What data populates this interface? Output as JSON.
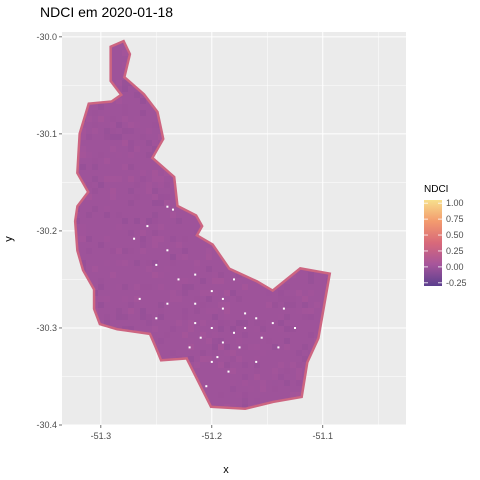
{
  "title": "NDCI em 2020-01-18",
  "chart_data": {
    "type": "heatmap",
    "title": "NDCI em 2020-01-18",
    "xlabel": "x",
    "ylabel": "y",
    "x_ticks": [
      "-51.3",
      "-51.2",
      "-51.1"
    ],
    "x_tick_values": [
      -51.3,
      -51.2,
      -51.1
    ],
    "y_ticks": [
      "-30.0",
      "-30.1",
      "-30.2",
      "-30.3",
      "-30.4"
    ],
    "y_tick_values": [
      -30.0,
      -30.1,
      -30.2,
      -30.3,
      -30.4
    ],
    "xlim": [
      -51.335,
      -51.025
    ],
    "ylim": [
      -30.4,
      -29.995
    ],
    "grid": true,
    "legend": {
      "title": "NDCI",
      "placement": "right",
      "labels": [
        "1.00",
        "0.75",
        "0.50",
        "0.25",
        "0.00",
        "-0.25"
      ],
      "values": [
        1.0,
        0.75,
        0.5,
        0.25,
        0.0,
        -0.25
      ],
      "range": [
        -0.3,
        1.05
      ],
      "colors": [
        "#5b3f8e",
        "#a6559b",
        "#d8697a",
        "#f39a6e",
        "#f7df8c"
      ]
    },
    "typical_value": 0.0,
    "edge_value": 0.3,
    "outline_lonlat": [
      [
        -51.29,
        -30.011
      ],
      [
        -51.28,
        -30.006
      ],
      [
        -51.275,
        -30.018
      ],
      [
        -51.28,
        -30.042
      ],
      [
        -51.262,
        -30.06
      ],
      [
        -51.25,
        -30.078
      ],
      [
        -51.245,
        -30.105
      ],
      [
        -51.255,
        -30.125
      ],
      [
        -51.235,
        -30.145
      ],
      [
        -51.232,
        -30.175
      ],
      [
        -51.215,
        -30.185
      ],
      [
        -51.21,
        -30.195
      ],
      [
        -51.215,
        -30.205
      ],
      [
        -51.2,
        -30.215
      ],
      [
        -51.185,
        -30.24
      ],
      [
        -51.16,
        -30.253
      ],
      [
        -51.145,
        -30.263
      ],
      [
        -51.12,
        -30.24
      ],
      [
        -51.095,
        -30.245
      ],
      [
        -51.105,
        -30.31
      ],
      [
        -51.115,
        -30.335
      ],
      [
        -51.12,
        -30.37
      ],
      [
        -51.145,
        -30.375
      ],
      [
        -51.17,
        -30.382
      ],
      [
        -51.2,
        -30.38
      ],
      [
        -51.222,
        -30.33
      ],
      [
        -51.245,
        -30.332
      ],
      [
        -51.25,
        -30.318
      ],
      [
        -51.255,
        -30.305
      ],
      [
        -51.285,
        -30.3
      ],
      [
        -51.3,
        -30.295
      ],
      [
        -51.305,
        -30.28
      ],
      [
        -51.305,
        -30.26
      ],
      [
        -51.315,
        -30.24
      ],
      [
        -51.32,
        -30.22
      ],
      [
        -51.322,
        -30.19
      ],
      [
        -51.32,
        -30.175
      ],
      [
        -51.31,
        -30.16
      ],
      [
        -51.32,
        -30.14
      ],
      [
        -51.318,
        -30.1
      ],
      [
        -51.31,
        -30.07
      ],
      [
        -51.29,
        -30.068
      ],
      [
        -51.28,
        -30.06
      ],
      [
        -51.29,
        -30.045
      ]
    ],
    "holes_lonlat": [
      [
        -51.24,
        -30.175
      ],
      [
        -51.235,
        -30.178
      ],
      [
        -51.258,
        -30.195
      ],
      [
        -51.27,
        -30.208
      ],
      [
        -51.24,
        -30.22
      ],
      [
        -51.25,
        -30.235
      ],
      [
        -51.23,
        -30.25
      ],
      [
        -51.215,
        -30.245
      ],
      [
        -51.2,
        -30.262
      ],
      [
        -51.215,
        -30.275
      ],
      [
        -51.24,
        -30.275
      ],
      [
        -51.19,
        -30.28
      ],
      [
        -51.17,
        -30.285
      ],
      [
        -51.16,
        -30.29
      ],
      [
        -51.17,
        -30.3
      ],
      [
        -51.18,
        -30.305
      ],
      [
        -51.2,
        -30.3
      ],
      [
        -51.21,
        -30.31
      ],
      [
        -51.19,
        -30.315
      ],
      [
        -51.175,
        -30.32
      ],
      [
        -51.155,
        -30.31
      ],
      [
        -51.145,
        -30.295
      ],
      [
        -51.125,
        -30.3
      ],
      [
        -51.14,
        -30.32
      ],
      [
        -51.16,
        -30.335
      ],
      [
        -51.2,
        -30.335
      ],
      [
        -51.22,
        -30.32
      ],
      [
        -51.25,
        -30.29
      ],
      [
        -51.265,
        -30.27
      ],
      [
        -51.18,
        -30.25
      ],
      [
        -51.185,
        -30.345
      ],
      [
        -51.195,
        -30.33
      ],
      [
        -51.215,
        -30.295
      ],
      [
        -51.135,
        -30.28
      ],
      [
        -51.205,
        -30.36
      ],
      [
        -51.19,
        -30.27
      ]
    ]
  }
}
